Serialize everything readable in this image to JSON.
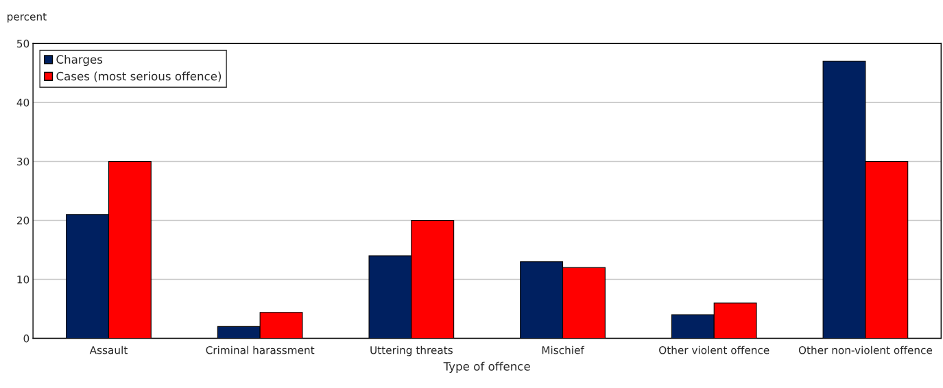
{
  "chart_data": {
    "type": "bar",
    "ylabel": "percent",
    "xlabel": "Type of offence",
    "categories": [
      "Assault",
      "Criminal harassment",
      "Uttering threats",
      "Mischief",
      "Other violent offence",
      "Other non-violent offence"
    ],
    "series": [
      {
        "name": "Charges",
        "color": "#002060",
        "values": [
          21,
          2,
          14,
          13,
          4,
          47
        ]
      },
      {
        "name": "Cases (most serious offence)",
        "color": "#ff0000",
        "values": [
          30,
          4.4,
          20,
          12,
          6,
          30
        ]
      }
    ],
    "ylim": [
      0,
      50
    ],
    "yticks": [
      0,
      10,
      20,
      30,
      40,
      50
    ],
    "grid": "y",
    "legend": "top left"
  }
}
